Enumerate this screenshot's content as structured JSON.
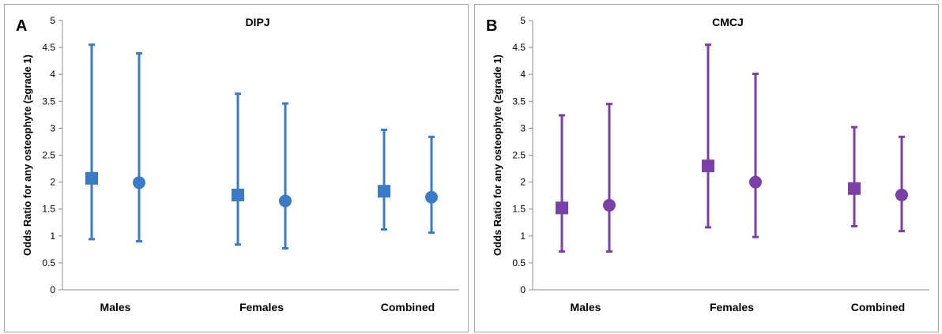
{
  "chart_data": [
    {
      "type": "scatter",
      "panel_letter": "A",
      "title": "DIPJ",
      "xlabel": "",
      "ylabel": "Odds Ratio  for any osteophyte (≥grade 1)",
      "ylim": [
        0,
        5
      ],
      "yticks": [
        "0",
        "0.5",
        "1",
        "1.5",
        "2",
        "2.5",
        "3",
        "3.5",
        "4",
        "4.5",
        "5"
      ],
      "categories": [
        "Males",
        "Females",
        "Combined"
      ],
      "grid": false,
      "legend": "none",
      "color": "#3a7bc8",
      "series": [
        {
          "marker": "square",
          "values": [
            2.07,
            1.76,
            1.83
          ],
          "lower": [
            0.94,
            0.84,
            1.12
          ],
          "upper": [
            4.55,
            3.64,
            2.97
          ]
        },
        {
          "marker": "circle",
          "values": [
            1.99,
            1.65,
            1.72
          ],
          "lower": [
            0.9,
            0.77,
            1.06
          ],
          "upper": [
            4.39,
            3.46,
            2.84
          ]
        }
      ]
    },
    {
      "type": "scatter",
      "panel_letter": "B",
      "title": "CMCJ",
      "xlabel": "",
      "ylabel": "Odds Ratio  for any osteophyte (≥grade 1)",
      "ylim": [
        0,
        5
      ],
      "yticks": [
        "0",
        "0.5",
        "1",
        "1.5",
        "2",
        "2.5",
        "3",
        "3.5",
        "4",
        "4.5",
        "5"
      ],
      "categories": [
        "Males",
        "Females",
        "Combined"
      ],
      "grid": false,
      "legend": "none",
      "color": "#7b3fa8",
      "series": [
        {
          "marker": "square",
          "values": [
            1.52,
            2.3,
            1.88
          ],
          "lower": [
            0.71,
            1.16,
            1.18
          ],
          "upper": [
            3.24,
            4.55,
            3.02
          ]
        },
        {
          "marker": "circle",
          "values": [
            1.57,
            2.0,
            1.76
          ],
          "lower": [
            0.71,
            0.98,
            1.09
          ],
          "upper": [
            3.45,
            4.01,
            2.84
          ]
        }
      ]
    }
  ]
}
